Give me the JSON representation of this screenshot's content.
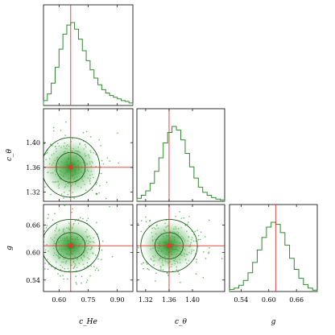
{
  "colors": {
    "hist": "#2e8b2e",
    "truth": "#e8342a",
    "density": "#2e9e2e"
  },
  "chart_data": {
    "type": "corner",
    "parameters": [
      {
        "name": "c_He",
        "label": "c_He",
        "range": [
          0.52,
          0.98
        ],
        "ticks": [
          "0.60",
          "0.75",
          "0.90"
        ],
        "tick_values": [
          0.6,
          0.75,
          0.9
        ],
        "truth": 0.66
      },
      {
        "name": "c_theta",
        "label": "c_θ",
        "range": [
          1.305,
          1.455
        ],
        "ticks": [
          "1.32",
          "1.36",
          "1.40"
        ],
        "tick_values": [
          1.32,
          1.36,
          1.4
        ],
        "truth": 1.36
      },
      {
        "name": "g",
        "label": "g",
        "range": [
          0.515,
          0.705
        ],
        "ticks": [
          "0.54",
          "0.60",
          "0.66"
        ],
        "tick_values": [
          0.54,
          0.6,
          0.66
        ],
        "truth": 0.615
      }
    ],
    "marginals": [
      {
        "param": "c_He",
        "bin_edges": [
          0.52,
          0.54,
          0.56,
          0.58,
          0.6,
          0.62,
          0.64,
          0.66,
          0.68,
          0.7,
          0.72,
          0.74,
          0.76,
          0.78,
          0.8,
          0.82,
          0.84,
          0.86,
          0.88,
          0.9,
          0.92,
          0.94,
          0.96,
          0.98
        ],
        "counts": [
          0.06,
          0.14,
          0.27,
          0.46,
          0.68,
          0.86,
          0.97,
          1.0,
          0.92,
          0.8,
          0.66,
          0.54,
          0.43,
          0.33,
          0.25,
          0.19,
          0.15,
          0.12,
          0.1,
          0.08,
          0.06,
          0.05,
          0.03
        ]
      },
      {
        "param": "c_theta",
        "bin_edges": [
          1.305,
          1.3125,
          1.32,
          1.3275,
          1.335,
          1.3425,
          1.35,
          1.3575,
          1.365,
          1.3725,
          1.38,
          1.3875,
          1.395,
          1.4025,
          1.41,
          1.4175,
          1.425,
          1.4325,
          1.44,
          1.4475,
          1.455
        ],
        "counts": [
          0.04,
          0.08,
          0.14,
          0.24,
          0.4,
          0.58,
          0.78,
          0.92,
          1.0,
          0.95,
          0.82,
          0.64,
          0.46,
          0.31,
          0.19,
          0.12,
          0.08,
          0.05,
          0.03,
          0.02
        ]
      },
      {
        "param": "g",
        "bin_edges": [
          0.515,
          0.525,
          0.535,
          0.545,
          0.555,
          0.565,
          0.575,
          0.585,
          0.595,
          0.605,
          0.615,
          0.625,
          0.635,
          0.645,
          0.655,
          0.665,
          0.675,
          0.685,
          0.695,
          0.705
        ],
        "counts": [
          0.03,
          0.05,
          0.09,
          0.16,
          0.27,
          0.42,
          0.6,
          0.78,
          0.93,
          1.0,
          0.97,
          0.85,
          0.67,
          0.48,
          0.32,
          0.19,
          0.1,
          0.05,
          0.02
        ]
      }
    ],
    "joint": [
      {
        "x": "c_He",
        "y": "c_theta",
        "center": [
          0.66,
          1.36
        ],
        "sigma": [
          0.065,
          0.021
        ],
        "contour_levels_sigma": [
          1,
          2
        ]
      },
      {
        "x": "c_He",
        "y": "g",
        "center": [
          0.66,
          0.615
        ],
        "sigma": [
          0.065,
          0.025
        ],
        "contour_levels_sigma": [
          1,
          2
        ]
      },
      {
        "x": "c_theta",
        "y": "g",
        "center": [
          1.36,
          0.615
        ],
        "sigma": [
          0.021,
          0.025
        ],
        "contour_levels_sigma": [
          1,
          2
        ]
      }
    ],
    "truth_marker": "red lines and square at true values",
    "grid": false
  }
}
